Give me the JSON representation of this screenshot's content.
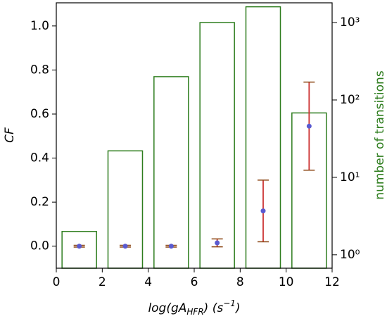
{
  "chart_data": {
    "type": "combo",
    "x_label": [
      "log(gA",
      "HFR",
      ") (s",
      "−1",
      ")"
    ],
    "y_label": "CF",
    "y2_label": "number of transitions",
    "xlim": [
      0,
      12
    ],
    "xticks": [
      0,
      2,
      4,
      6,
      8,
      10,
      12
    ],
    "ylim": [
      -0.1,
      1.105
    ],
    "yticks": [
      {
        "value": 0,
        "label": "0.0"
      },
      {
        "value": 0.2,
        "label": "0.2"
      },
      {
        "value": 0.4,
        "label": "0.4"
      },
      {
        "value": 0.6,
        "label": "0.6"
      },
      {
        "value": 0.8,
        "label": "0.8"
      },
      {
        "value": 1,
        "label": "1.0"
      }
    ],
    "y2lim": [
      0.67,
      1800
    ],
    "y2scale": "log",
    "y2ticks": [
      {
        "value": 1,
        "label": "10⁰"
      },
      {
        "value": 10,
        "label": "10¹"
      },
      {
        "value": 100,
        "label": "10²"
      },
      {
        "value": 1000,
        "label": "10³"
      }
    ],
    "series": [
      {
        "type": "bar",
        "axis": "y2",
        "color": "#2e7d1e",
        "edges": [
          [
            0.25,
            1.75
          ],
          [
            2.25,
            3.75
          ],
          [
            4.25,
            5.75
          ],
          [
            6.25,
            7.75
          ],
          [
            8.25,
            9.75
          ],
          [
            10.25,
            11.75
          ]
        ],
        "values": [
          2,
          22,
          200,
          1000,
          1600,
          68
        ]
      },
      {
        "type": "scatter",
        "axis": "y",
        "color": "#5a5ad0",
        "error_color": "#cc3333",
        "cap_color": "#8b4513",
        "x": [
          1,
          3,
          5,
          7,
          9,
          11
        ],
        "values": [
          0,
          0,
          0,
          0.015,
          0.16,
          0.545
        ],
        "errors": [
          0.004,
          0.004,
          0.004,
          0.018,
          0.14,
          0.2
        ]
      }
    ]
  }
}
